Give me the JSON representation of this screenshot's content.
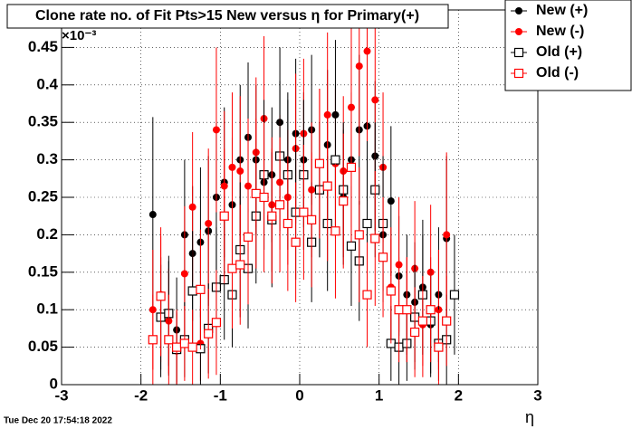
{
  "chart_data": {
    "type": "scatter",
    "title": "Clone rate no. of Fit Pts>15 New versus  η for Primary(+)",
    "x_label": "η",
    "y_multiplier": "×10⁻³",
    "timestamp": "Tue Dec 20 17:54:18 2022",
    "xlim": [
      -3,
      3
    ],
    "xticks": [
      -3,
      -2,
      -1,
      0,
      1,
      2,
      3
    ],
    "ylim": [
      0,
      0.5
    ],
    "yticks": [
      0,
      0.05,
      0.1,
      0.15,
      0.2,
      0.25,
      0.3,
      0.35,
      0.4,
      0.45
    ],
    "grid": true,
    "legend": "top-right",
    "x": [
      -1.85,
      -1.75,
      -1.65,
      -1.55,
      -1.45,
      -1.35,
      -1.25,
      -1.15,
      -1.05,
      -0.95,
      -0.85,
      -0.75,
      -0.65,
      -0.55,
      -0.45,
      -0.35,
      -0.25,
      -0.15,
      -0.05,
      0.05,
      0.15,
      0.25,
      0.35,
      0.45,
      0.55,
      0.65,
      0.75,
      0.85,
      0.95,
      1.05,
      1.15,
      1.25,
      1.35,
      1.45,
      1.55,
      1.65,
      1.75,
      1.85,
      1.95
    ],
    "series": [
      {
        "name": "New (+)",
        "color": "#000000",
        "marker": "filled",
        "values": [
          0.227,
          0.09,
          0.092,
          0.073,
          0.2,
          0.175,
          0.19,
          0.205,
          0.25,
          0.27,
          0.24,
          0.3,
          0.33,
          0.3,
          0.27,
          0.28,
          0.35,
          0.3,
          0.335,
          0.3,
          0.34,
          0.26,
          0.32,
          0.36,
          0.25,
          0.3,
          0.34,
          0.345,
          0.305,
          0.2,
          0.245,
          0.145,
          0.12,
          0.11,
          0.13,
          0.08,
          0.12,
          0.195,
          null
        ],
        "errors": [
          0.13,
          0.08,
          0.08,
          0.07,
          0.1,
          0.09,
          0.1,
          0.1,
          0.1,
          0.1,
          0.09,
          0.1,
          0.1,
          0.1,
          0.09,
          0.09,
          0.1,
          0.09,
          0.1,
          0.09,
          0.1,
          0.09,
          0.1,
          0.1,
          0.09,
          0.09,
          0.1,
          0.1,
          0.1,
          0.09,
          0.1,
          0.08,
          0.08,
          0.08,
          0.09,
          0.07,
          0.09,
          0.11,
          null
        ]
      },
      {
        "name": "New (-)",
        "color": "#ff0000",
        "marker": "filled",
        "values": [
          0.1,
          0.12,
          0.085,
          0.045,
          0.148,
          0.237,
          0.055,
          0.215,
          0.34,
          0.265,
          0.29,
          0.285,
          0.265,
          0.31,
          0.355,
          0.24,
          0.27,
          0.25,
          0.315,
          0.335,
          0.26,
          0.295,
          0.36,
          0.295,
          0.285,
          0.37,
          0.425,
          0.445,
          0.38,
          0.29,
          0.13,
          0.16,
          0.1,
          0.155,
          0.08,
          0.15,
          0.1,
          0.2,
          null
        ],
        "errors": [
          0.08,
          0.09,
          0.07,
          0.05,
          0.09,
          0.1,
          0.05,
          0.1,
          0.11,
          0.1,
          0.1,
          0.1,
          0.09,
          0.1,
          0.11,
          0.09,
          0.09,
          0.09,
          0.1,
          0.1,
          0.09,
          0.1,
          0.11,
          0.1,
          0.1,
          0.11,
          0.12,
          0.12,
          0.11,
          0.1,
          0.08,
          0.09,
          0.07,
          0.09,
          0.07,
          0.09,
          0.08,
          0.11,
          null
        ]
      },
      {
        "name": "Old (+)",
        "color": "#000000",
        "marker": "open",
        "values": [
          null,
          0.09,
          0.095,
          0.047,
          0.06,
          0.125,
          0.048,
          0.075,
          0.13,
          0.14,
          0.12,
          0.18,
          0.155,
          0.225,
          0.28,
          0.22,
          0.305,
          0.28,
          0.23,
          0.28,
          0.19,
          0.26,
          0.215,
          0.3,
          0.26,
          0.185,
          0.165,
          0.215,
          0.26,
          0.215,
          0.055,
          0.05,
          0.055,
          0.09,
          0.12,
          0.085,
          0.055,
          0.06,
          0.12
        ],
        "errors": [
          null,
          0.07,
          0.07,
          0.05,
          0.05,
          0.08,
          0.05,
          0.06,
          0.08,
          0.08,
          0.07,
          0.09,
          0.08,
          0.09,
          0.1,
          0.09,
          0.1,
          0.1,
          0.09,
          0.1,
          0.08,
          0.09,
          0.09,
          0.1,
          0.09,
          0.08,
          0.08,
          0.09,
          0.09,
          0.09,
          0.05,
          0.05,
          0.05,
          0.07,
          0.08,
          0.07,
          0.05,
          0.06,
          0.08
        ]
      },
      {
        "name": "Old (-)",
        "color": "#ff0000",
        "marker": "open",
        "values": [
          0.06,
          0.118,
          0.06,
          0.05,
          0.055,
          0.05,
          0.127,
          0.068,
          0.083,
          0.225,
          0.155,
          0.16,
          0.197,
          0.255,
          0.25,
          0.225,
          0.24,
          0.215,
          0.19,
          0.23,
          0.22,
          0.295,
          0.265,
          0.205,
          0.245,
          0.29,
          0.2,
          0.12,
          0.195,
          0.17,
          0.125,
          0.1,
          0.1,
          0.07,
          0.085,
          0.1,
          0.05,
          0.085,
          null
        ],
        "errors": [
          0.06,
          0.08,
          0.06,
          0.05,
          0.05,
          0.05,
          0.08,
          0.06,
          0.07,
          0.09,
          0.08,
          0.08,
          0.09,
          0.1,
          0.1,
          0.09,
          0.09,
          0.09,
          0.08,
          0.09,
          0.09,
          0.1,
          0.1,
          0.09,
          0.09,
          0.1,
          0.09,
          0.07,
          0.09,
          0.08,
          0.07,
          0.07,
          0.07,
          0.06,
          0.06,
          0.07,
          0.05,
          0.06,
          null
        ]
      }
    ]
  }
}
